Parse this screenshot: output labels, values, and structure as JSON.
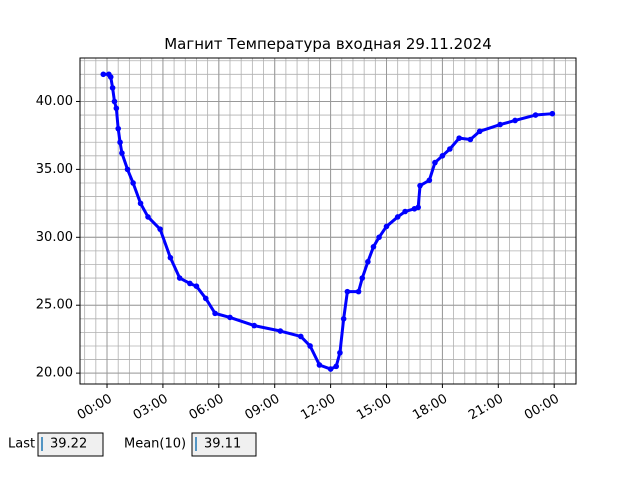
{
  "chart_data": {
    "type": "line",
    "title": "Магнит Температура входная 29.11.2024",
    "x": [
      -0.2,
      0.1,
      0.2,
      0.3,
      0.4,
      0.5,
      0.6,
      0.7,
      0.8,
      1.1,
      1.4,
      1.8,
      2.2,
      2.85,
      3.4,
      3.9,
      4.45,
      4.8,
      5.3,
      5.8,
      6.6,
      7.9,
      9.3,
      10.4,
      10.9,
      11.4,
      12.0,
      12.3,
      12.5,
      12.7,
      12.9,
      13.5,
      13.7,
      14.0,
      14.3,
      14.6,
      15.0,
      15.6,
      16.0,
      16.5,
      16.7,
      16.8,
      17.3,
      17.6,
      18.0,
      18.4,
      18.9,
      19.5,
      20.0,
      21.1,
      21.9,
      23.0,
      23.9
    ],
    "series": [
      {
        "color": "#0000ff",
        "values": [
          42.0,
          42.0,
          41.8,
          41.0,
          40.0,
          39.5,
          38.0,
          37.0,
          36.2,
          35.0,
          34.0,
          32.5,
          31.5,
          30.6,
          28.5,
          27.0,
          26.6,
          26.4,
          25.5,
          24.4,
          24.1,
          23.5,
          23.1,
          22.7,
          22.0,
          20.6,
          20.3,
          20.5,
          21.5,
          24.0,
          26.0,
          26.0,
          27.0,
          28.2,
          29.3,
          30.0,
          30.8,
          31.5,
          31.9,
          32.1,
          32.2,
          33.8,
          34.2,
          35.5,
          36.0,
          36.5,
          37.3,
          37.2,
          37.8,
          38.3,
          38.6,
          39.0,
          39.1
        ]
      }
    ],
    "xlim": [
      -1.45,
      25.17
    ],
    "ylim": [
      19.2,
      43.2
    ],
    "xticks": [
      {
        "value": 0,
        "label": "00:00"
      },
      {
        "value": 3,
        "label": "03:00"
      },
      {
        "value": 6,
        "label": "06:00"
      },
      {
        "value": 9,
        "label": "09:00"
      },
      {
        "value": 12,
        "label": "12:00"
      },
      {
        "value": 15,
        "label": "15:00"
      },
      {
        "value": 18,
        "label": "18:00"
      },
      {
        "value": 21,
        "label": "21:00"
      },
      {
        "value": 24,
        "label": "00:00"
      }
    ],
    "yticks": [
      {
        "value": 20,
        "label": "20.00"
      },
      {
        "value": 25,
        "label": "25.00"
      },
      {
        "value": 30,
        "label": "30.00"
      },
      {
        "value": 35,
        "label": "35.00"
      },
      {
        "value": 40,
        "label": "40.00"
      }
    ],
    "grid": true,
    "minor_xstep": 0.6,
    "minor_ystep": 1
  },
  "controls": [
    {
      "label": "Last",
      "value": "39.22"
    },
    {
      "label": "Mean(10)",
      "value": "39.11"
    }
  ]
}
